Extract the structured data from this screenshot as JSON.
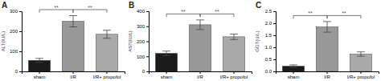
{
  "chart_data": [
    {
      "type": "bar",
      "title": "A",
      "ylabel": "ALT(IU/L)",
      "categories": [
        "sham",
        "I/R",
        "I/R+ propofol"
      ],
      "values": [
        55,
        250,
        185
      ],
      "errors": [
        10,
        28,
        20
      ],
      "colors": [
        "#1a1a1a",
        "#999999",
        "#aaaaaa"
      ],
      "ylim": [
        0,
        300
      ],
      "yticks": [
        0,
        100,
        200,
        300
      ],
      "annotations": [
        {
          "text": "**",
          "from": "sham",
          "to": "I/R"
        },
        {
          "text": "**",
          "from": "I/R",
          "to": "I/R+ propofol"
        }
      ]
    },
    {
      "type": "bar",
      "title": "B",
      "ylabel": "AST(IU/L)",
      "categories": [
        "sham",
        "I/R",
        "I/R+ propofol"
      ],
      "values": [
        120,
        310,
        230
      ],
      "errors": [
        15,
        32,
        18
      ],
      "colors": [
        "#1a1a1a",
        "#999999",
        "#aaaaaa"
      ],
      "ylim": [
        0,
        400
      ],
      "yticks": [
        0,
        100,
        200,
        300,
        400
      ],
      "annotations": [
        {
          "text": "**",
          "from": "sham",
          "to": "I/R"
        },
        {
          "text": "**",
          "from": "I/R",
          "to": "I/R+ propofol"
        }
      ]
    },
    {
      "type": "bar",
      "title": "C",
      "ylabel": "GGT(U/L)",
      "categories": [
        "sham",
        "I/R",
        "I/R+ propofol"
      ],
      "values": [
        0.22,
        1.85,
        0.72
      ],
      "errors": [
        0.05,
        0.22,
        0.09
      ],
      "colors": [
        "#1a1a1a",
        "#999999",
        "#aaaaaa"
      ],
      "ylim": [
        0,
        2.5
      ],
      "yticks": [
        {
          "value": 0,
          "label": "0.0"
        },
        0.5,
        {
          "value": 1,
          "label": "1.0"
        },
        1.5,
        {
          "value": 2,
          "label": "2.0"
        },
        2.5
      ],
      "annotations": [
        {
          "text": "**",
          "from": "sham",
          "to": "I/R"
        },
        {
          "text": "**",
          "from": "I/R",
          "to": "I/R+ propofol"
        }
      ]
    }
  ]
}
